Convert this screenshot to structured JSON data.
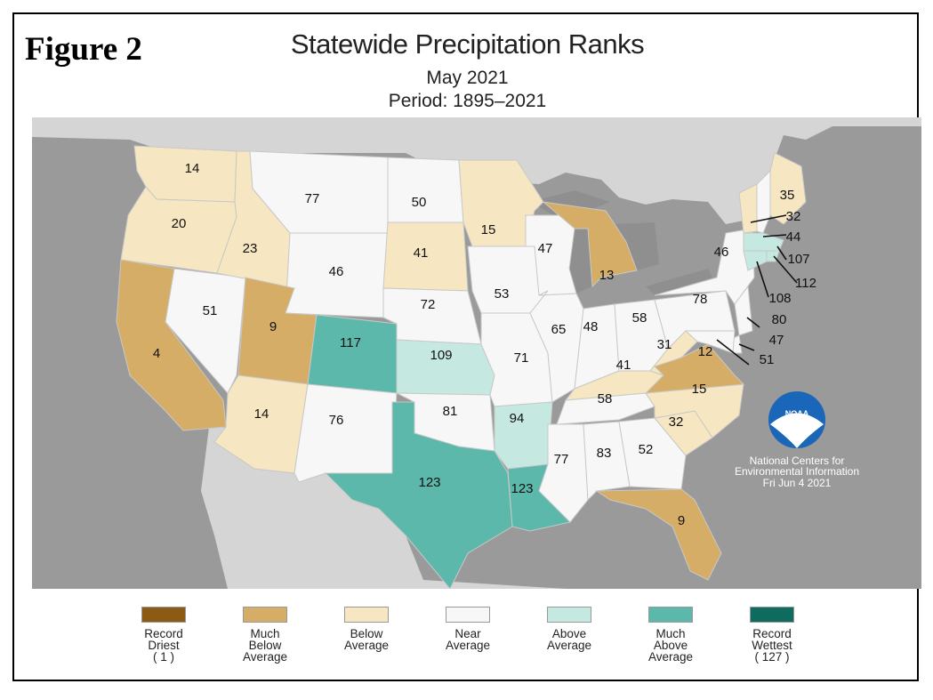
{
  "figure_label": "Figure 2",
  "title": "Statewide Precipitation Ranks",
  "subtitle_month": "May 2021",
  "subtitle_period": "Period: 1895–2021",
  "logo": {
    "text": "NOAA",
    "center_name": "National Centers for Environmental Information",
    "date": "Fri Jun  4 2021"
  },
  "colors": {
    "record_driest": "#8b5a14",
    "much_below": "#d6ad66",
    "below": "#f6e6c1",
    "near": "#f7f7f7",
    "above": "#c5e9e1",
    "much_above": "#5cb8aa",
    "record_wettest": "#0f6b5e",
    "ocean": "#9a9a9a",
    "land_other": "#d5d5d5",
    "water": "#8f8f8f"
  },
  "legend": [
    {
      "key": "record_driest",
      "label": "Record Driest",
      "sub": "( 1 )"
    },
    {
      "key": "much_below",
      "label": "Much Below Average",
      "sub": ""
    },
    {
      "key": "below",
      "label": "Below Average",
      "sub": ""
    },
    {
      "key": "near",
      "label": "Near Average",
      "sub": ""
    },
    {
      "key": "above",
      "label": "Above Average",
      "sub": ""
    },
    {
      "key": "much_above",
      "label": "Much Above Average",
      "sub": ""
    },
    {
      "key": "record_wettest",
      "label": "Record Wettest",
      "sub": "( 127 )"
    }
  ],
  "states": [
    {
      "state": "WA",
      "rank": "14",
      "category": "below"
    },
    {
      "state": "OR",
      "rank": "20",
      "category": "below"
    },
    {
      "state": "CA",
      "rank": "4",
      "category": "much_below"
    },
    {
      "state": "NV",
      "rank": "51",
      "category": "near"
    },
    {
      "state": "ID",
      "rank": "23",
      "category": "below"
    },
    {
      "state": "MT",
      "rank": "77",
      "category": "near"
    },
    {
      "state": "WY",
      "rank": "46",
      "category": "near"
    },
    {
      "state": "UT",
      "rank": "9",
      "category": "much_below"
    },
    {
      "state": "AZ",
      "rank": "14",
      "category": "below"
    },
    {
      "state": "CO",
      "rank": "117",
      "category": "much_above"
    },
    {
      "state": "NM",
      "rank": "76",
      "category": "near"
    },
    {
      "state": "ND",
      "rank": "50",
      "category": "near"
    },
    {
      "state": "SD",
      "rank": "41",
      "category": "below"
    },
    {
      "state": "NE",
      "rank": "72",
      "category": "near"
    },
    {
      "state": "KS",
      "rank": "109",
      "category": "above"
    },
    {
      "state": "OK",
      "rank": "81",
      "category": "near"
    },
    {
      "state": "TX",
      "rank": "123",
      "category": "much_above"
    },
    {
      "state": "MN",
      "rank": "15",
      "category": "below"
    },
    {
      "state": "IA",
      "rank": "53",
      "category": "near"
    },
    {
      "state": "MO",
      "rank": "71",
      "category": "near"
    },
    {
      "state": "AR",
      "rank": "94",
      "category": "above"
    },
    {
      "state": "LA",
      "rank": "123",
      "category": "much_above"
    },
    {
      "state": "WI",
      "rank": "47",
      "category": "near"
    },
    {
      "state": "IL",
      "rank": "65",
      "category": "near"
    },
    {
      "state": "MI",
      "rank": "13",
      "category": "much_below"
    },
    {
      "state": "IN",
      "rank": "48",
      "category": "near"
    },
    {
      "state": "OH",
      "rank": "58",
      "category": "near"
    },
    {
      "state": "KY",
      "rank": "41",
      "category": "below"
    },
    {
      "state": "TN",
      "rank": "58",
      "category": "near"
    },
    {
      "state": "MS",
      "rank": "77",
      "category": "near"
    },
    {
      "state": "AL",
      "rank": "83",
      "category": "near"
    },
    {
      "state": "GA",
      "rank": "52",
      "category": "near"
    },
    {
      "state": "FL",
      "rank": "9",
      "category": "much_below"
    },
    {
      "state": "SC",
      "rank": "32",
      "category": "below"
    },
    {
      "state": "NC",
      "rank": "15",
      "category": "below"
    },
    {
      "state": "VA",
      "rank": "12",
      "category": "much_below"
    },
    {
      "state": "WV",
      "rank": "31",
      "category": "below"
    },
    {
      "state": "PA",
      "rank": "78",
      "category": "near"
    },
    {
      "state": "NY",
      "rank": "46",
      "category": "near"
    },
    {
      "state": "ME",
      "rank": "35",
      "category": "below"
    },
    {
      "state": "NH",
      "rank": "44",
      "category": "near"
    },
    {
      "state": "VT",
      "rank": "32",
      "category": "below"
    },
    {
      "state": "MA",
      "rank": "107",
      "category": "above"
    },
    {
      "state": "RI",
      "rank": "112",
      "category": "above"
    },
    {
      "state": "CT",
      "rank": "108",
      "category": "above"
    },
    {
      "state": "NJ",
      "rank": "80",
      "category": "near"
    },
    {
      "state": "DE",
      "rank": "47",
      "category": "near"
    },
    {
      "state": "MD",
      "rank": "51",
      "category": "near"
    }
  ]
}
